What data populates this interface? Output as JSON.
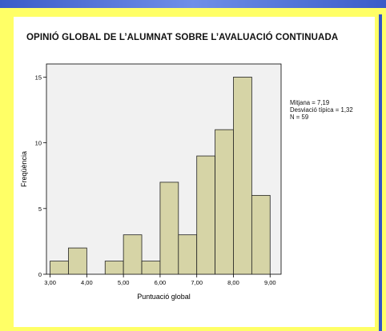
{
  "chart_data": {
    "type": "bar",
    "title": "OPINIÓ GLOBAL DE L’ALUMNAT SOBRE L’AVALUACIÓ CONTINUADA",
    "xlabel": "Puntuació global",
    "ylabel": "Freqüència",
    "xlim": [
      2.9,
      9.3
    ],
    "ylim": [
      0,
      16
    ],
    "xticks": [
      "3,00",
      "4,00",
      "5,00",
      "6,00",
      "7,00",
      "8,00",
      "9,00"
    ],
    "yticks": [
      "0",
      "5",
      "10",
      "15"
    ],
    "bin_width": 0.5,
    "bins": [
      {
        "start": 3.0,
        "count": 1
      },
      {
        "start": 3.5,
        "count": 2
      },
      {
        "start": 4.0,
        "count": 0
      },
      {
        "start": 4.5,
        "count": 1
      },
      {
        "start": 5.0,
        "count": 3
      },
      {
        "start": 5.5,
        "count": 1
      },
      {
        "start": 6.0,
        "count": 7
      },
      {
        "start": 6.5,
        "count": 3
      },
      {
        "start": 7.0,
        "count": 9
      },
      {
        "start": 7.5,
        "count": 11
      },
      {
        "start": 8.0,
        "count": 15
      },
      {
        "start": 8.5,
        "count": 6
      }
    ],
    "bar_color": "#d6d4a6",
    "plot_background": "#f1f1f1",
    "stats": {
      "mean": "Mitjana = 7,19",
      "sd": "Desviació típica = 1,32",
      "n": "N = 59"
    }
  }
}
